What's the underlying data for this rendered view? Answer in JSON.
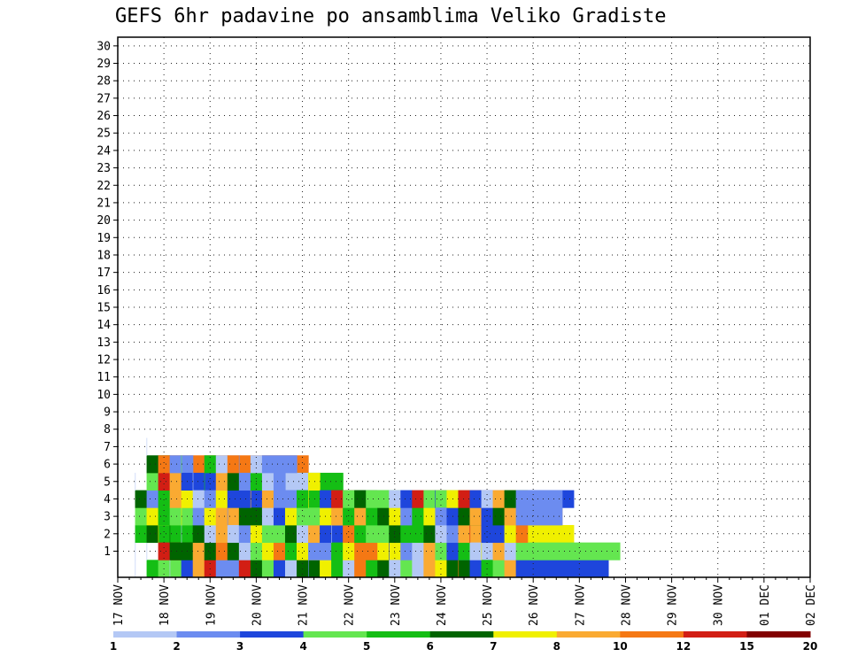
{
  "chart_data": {
    "type": "heatmap",
    "title": "GEFS 6hr padavine po ansamblima Veliko Gradiste",
    "y_members": [
      1,
      2,
      3,
      4,
      5,
      6,
      7,
      8,
      9,
      10,
      11,
      12,
      13,
      14,
      15,
      16,
      17,
      18,
      19,
      20,
      21,
      22,
      23,
      24,
      25,
      26,
      27,
      28,
      29,
      30
    ],
    "x_tick_labels": [
      "17 NOV",
      "18 NOV",
      "19 NOV",
      "20 NOV",
      "21 NOV",
      "22 NOV",
      "23 NOV",
      "24 NOV",
      "25 NOV",
      "26 NOV",
      "27 NOV",
      "28 NOV",
      "29 NOV",
      "30 NOV",
      "01 DEC",
      "02 DEC"
    ],
    "timesteps_per_day": 4,
    "grid": "dotted",
    "colorbar": {
      "position": "bottom",
      "tick_labels": [
        "1",
        "2",
        "3",
        "4",
        "5",
        "6",
        "7",
        "8",
        "10",
        "12",
        "15",
        "20"
      ],
      "colors": [
        "#b4c8f5",
        "#6c8cf0",
        "#1e46dc",
        "#64e650",
        "#14be14",
        "#006400",
        "#f0f000",
        "#faaa32",
        "#f57814",
        "#d21e14",
        "#820000"
      ]
    },
    "cells": [
      [
        0,
        1,
        0,
        0
      ],
      [
        1,
        1,
        0,
        0
      ],
      [
        2,
        1,
        4,
        7
      ],
      [
        3,
        1,
        3,
        3
      ],
      [
        4,
        1,
        5,
        5
      ],
      [
        5,
        1,
        0,
        0
      ],
      [
        0,
        2,
        4,
        4
      ],
      [
        1,
        2,
        0,
        0
      ],
      [
        2,
        2,
        5,
        1
      ],
      [
        3,
        2,
        6,
        8
      ],
      [
        4,
        2,
        1,
        1
      ],
      [
        5,
        2,
        3,
        6
      ],
      [
        6,
        2,
        5,
        2
      ],
      [
        7,
        2,
        0,
        0
      ],
      [
        0,
        3,
        3,
        4
      ],
      [
        1,
        3,
        9,
        7
      ],
      [
        2,
        3,
        6,
        0
      ],
      [
        3,
        3,
        4,
        6
      ],
      [
        4,
        3,
        4,
        9
      ],
      [
        5,
        3,
        9,
        3
      ],
      [
        6,
        3,
        8,
        6
      ],
      [
        0,
        4,
        0,
        0
      ],
      [
        1,
        4,
        5,
        4
      ],
      [
        2,
        4,
        5,
        0
      ],
      [
        3,
        4,
        3,
        4
      ],
      [
        4,
        4,
        7,
        3
      ],
      [
        5,
        4,
        7,
        3
      ],
      [
        6,
        4,
        1,
        2
      ],
      [
        0,
        5,
        2,
        7
      ],
      [
        1,
        5,
        5,
        6
      ],
      [
        2,
        5,
        0,
        0
      ],
      [
        3,
        5,
        6,
        0
      ],
      [
        4,
        5,
        6,
        2
      ],
      [
        5,
        5,
        2,
        5
      ],
      [
        6,
        5,
        3,
        0
      ],
      [
        0,
        6,
        7,
        7
      ],
      [
        1,
        6,
        7,
        3
      ],
      [
        2,
        6,
        5,
        8
      ],
      [
        3,
        6,
        1,
        2
      ],
      [
        4,
        6,
        0,
        1
      ],
      [
        5,
        6,
        0,
        0
      ],
      [
        0,
        7,
        9,
        8
      ],
      [
        1,
        7,
        5,
        2
      ],
      [
        2,
        7,
        0,
        1
      ],
      [
        3,
        7,
        6,
        4
      ],
      [
        4,
        7,
        1,
        3
      ],
      [
        5,
        7,
        4,
        0
      ],
      [
        6,
        7,
        4,
        1
      ],
      [
        0,
        8,
        1,
        1
      ],
      [
        1,
        8,
        8,
        8
      ],
      [
        2,
        8,
        7,
        2
      ],
      [
        3,
        8,
        7,
        4
      ],
      [
        4,
        8,
        6,
        9
      ],
      [
        5,
        8,
        7,
        5
      ],
      [
        6,
        8,
        0,
        2
      ],
      [
        0,
        9,
        1,
        3
      ],
      [
        1,
        9,
        5,
        7
      ],
      [
        2,
        9,
        0,
        6
      ],
      [
        3,
        9,
        1,
        0
      ],
      [
        4,
        9,
        2,
        1
      ],
      [
        5,
        9,
        5,
        3
      ],
      [
        6,
        9,
        8,
        7
      ],
      [
        0,
        10,
        9,
        7
      ],
      [
        1,
        10,
        0,
        8
      ],
      [
        2,
        10,
        1,
        7
      ],
      [
        3,
        10,
        5,
        2
      ],
      [
        4,
        10,
        2,
        5
      ],
      [
        5,
        10,
        1,
        1
      ],
      [
        6,
        10,
        1,
        0
      ],
      [
        0,
        11,
        5,
        4
      ],
      [
        1,
        11,
        3,
        7
      ],
      [
        2,
        11,
        6,
        3
      ],
      [
        3,
        11,
        5,
        2
      ],
      [
        4,
        11,
        7,
        0
      ],
      [
        5,
        11,
        4,
        8
      ],
      [
        6,
        11,
        0,
        1
      ],
      [
        0,
        12,
        3,
        1
      ],
      [
        1,
        12,
        6,
        2
      ],
      [
        2,
        12,
        3,
        3
      ],
      [
        3,
        12,
        0,
        1
      ],
      [
        4,
        12,
        7,
        4
      ],
      [
        5,
        12,
        0,
        4
      ],
      [
        6,
        12,
        1,
        3
      ],
      [
        0,
        13,
        2,
        5
      ],
      [
        1,
        13,
        8,
        9
      ],
      [
        2,
        13,
        3,
        8
      ],
      [
        3,
        13,
        2,
        1
      ],
      [
        4,
        13,
        1,
        4
      ],
      [
        5,
        13,
        1,
        1
      ],
      [
        0,
        14,
        0,
        6
      ],
      [
        1,
        14,
        4,
        3
      ],
      [
        2,
        14,
        5,
        2
      ],
      [
        3,
        14,
        6,
        4
      ],
      [
        4,
        14,
        1,
        2
      ],
      [
        0,
        15,
        5,
        8
      ],
      [
        1,
        15,
        6,
        6
      ],
      [
        2,
        15,
        0,
        4
      ],
      [
        3,
        15,
        3,
        5
      ],
      [
        4,
        15,
        4,
        8
      ],
      [
        0,
        16,
        1,
        0
      ],
      [
        1,
        16,
        1,
        7
      ],
      [
        2,
        16,
        7,
        1
      ],
      [
        3,
        16,
        3,
        9
      ],
      [
        4,
        16,
        6,
        0
      ],
      [
        5,
        16,
        6,
        1
      ],
      [
        0,
        17,
        6,
        3
      ],
      [
        1,
        17,
        1,
        5
      ],
      [
        2,
        17,
        2,
        7
      ],
      [
        3,
        17,
        6,
        8
      ],
      [
        4,
        17,
        2,
        8
      ],
      [
        0,
        18,
        4,
        3
      ],
      [
        1,
        18,
        4,
        1
      ],
      [
        2,
        18,
        0,
        0
      ],
      [
        3,
        18,
        7,
        1
      ],
      [
        4,
        18,
        9,
        5
      ],
      [
        0,
        19,
        0,
        1
      ],
      [
        1,
        19,
        6,
        4
      ],
      [
        2,
        19,
        8,
        7
      ],
      [
        3,
        19,
        4,
        8
      ],
      [
        4,
        19,
        3,
        3
      ],
      [
        0,
        20,
        8,
        5
      ],
      [
        1,
        20,
        8,
        3
      ],
      [
        2,
        20,
        4,
        1
      ],
      [
        3,
        20,
        7,
        2
      ],
      [
        4,
        20,
        5,
        3
      ],
      [
        0,
        21,
        4,
        5
      ],
      [
        1,
        21,
        8,
        6
      ],
      [
        2,
        21,
        3,
        7
      ],
      [
        3,
        21,
        4,
        2
      ],
      [
        4,
        21,
        3,
        5
      ],
      [
        0,
        22,
        5,
        7
      ],
      [
        1,
        22,
        6,
        6
      ],
      [
        2,
        22,
        3,
        6
      ],
      [
        3,
        22,
        5,
        1
      ],
      [
        4,
        22,
        3,
        1
      ],
      [
        0,
        23,
        0,
        5
      ],
      [
        1,
        23,
        2,
        0
      ],
      [
        2,
        23,
        5,
        4
      ],
      [
        3,
        23,
        6,
        1
      ],
      [
        4,
        23,
        0,
        6
      ],
      [
        0,
        24,
        3,
        8
      ],
      [
        1,
        24,
        1,
        8
      ],
      [
        2,
        24,
        4,
        9
      ],
      [
        3,
        24,
        1,
        4
      ],
      [
        4,
        24,
        2,
        1
      ],
      [
        0,
        25,
        0,
        2
      ],
      [
        1,
        25,
        0,
        1
      ],
      [
        2,
        25,
        4,
        3
      ],
      [
        3,
        25,
        4,
        2
      ],
      [
        4,
        25,
        9,
        7
      ],
      [
        0,
        26,
        7,
        8
      ],
      [
        1,
        26,
        7,
        4
      ],
      [
        2,
        26,
        5,
        9
      ],
      [
        3,
        26,
        6,
        4
      ],
      [
        4,
        26,
        3,
        8
      ],
      [
        0,
        27,
        6,
        5
      ],
      [
        1,
        27,
        3,
        2
      ],
      [
        2,
        27,
        0,
        4
      ],
      [
        3,
        27,
        1,
        7
      ],
      [
        4,
        27,
        2,
        0
      ],
      [
        0,
        28,
        5,
        8
      ],
      [
        1,
        28,
        2,
        5
      ],
      [
        2,
        28,
        1,
        6
      ],
      [
        3,
        28,
        2,
        2
      ],
      [
        4,
        28,
        6,
        1
      ],
      [
        0,
        29,
        8,
        0
      ],
      [
        1,
        29,
        4,
        3
      ],
      [
        2,
        29,
        7,
        4
      ],
      [
        3,
        29,
        5,
        4
      ],
      [
        4,
        29,
        9,
        4
      ],
      [
        0,
        30,
        2,
        4
      ],
      [
        1,
        30,
        0,
        7
      ],
      [
        2,
        30,
        9,
        0
      ],
      [
        3,
        30,
        7,
        8
      ],
      [
        4,
        30,
        2,
        9
      ],
      [
        0,
        31,
        4,
        6
      ],
      [
        1,
        31,
        6,
        0
      ],
      [
        2,
        31,
        2,
        3
      ],
      [
        3,
        31,
        2,
        3
      ],
      [
        4,
        31,
        0,
        2
      ],
      [
        0,
        32,
        3,
        4
      ],
      [
        1,
        32,
        7,
        7
      ],
      [
        2,
        32,
        2,
        4
      ],
      [
        3,
        32,
        5,
        1
      ],
      [
        4,
        32,
        7,
        2
      ],
      [
        0,
        33,
        7,
        3
      ],
      [
        1,
        33,
        0,
        6
      ],
      [
        2,
        33,
        6,
        6
      ],
      [
        3,
        33,
        7,
        4
      ],
      [
        4,
        33,
        5,
        2
      ],
      [
        0,
        34,
        2,
        8
      ],
      [
        1,
        34,
        3,
        9
      ],
      [
        2,
        34,
        8,
        1
      ],
      [
        3,
        34,
        1,
        4
      ],
      [
        4,
        34,
        1,
        4
      ]
    ]
  }
}
